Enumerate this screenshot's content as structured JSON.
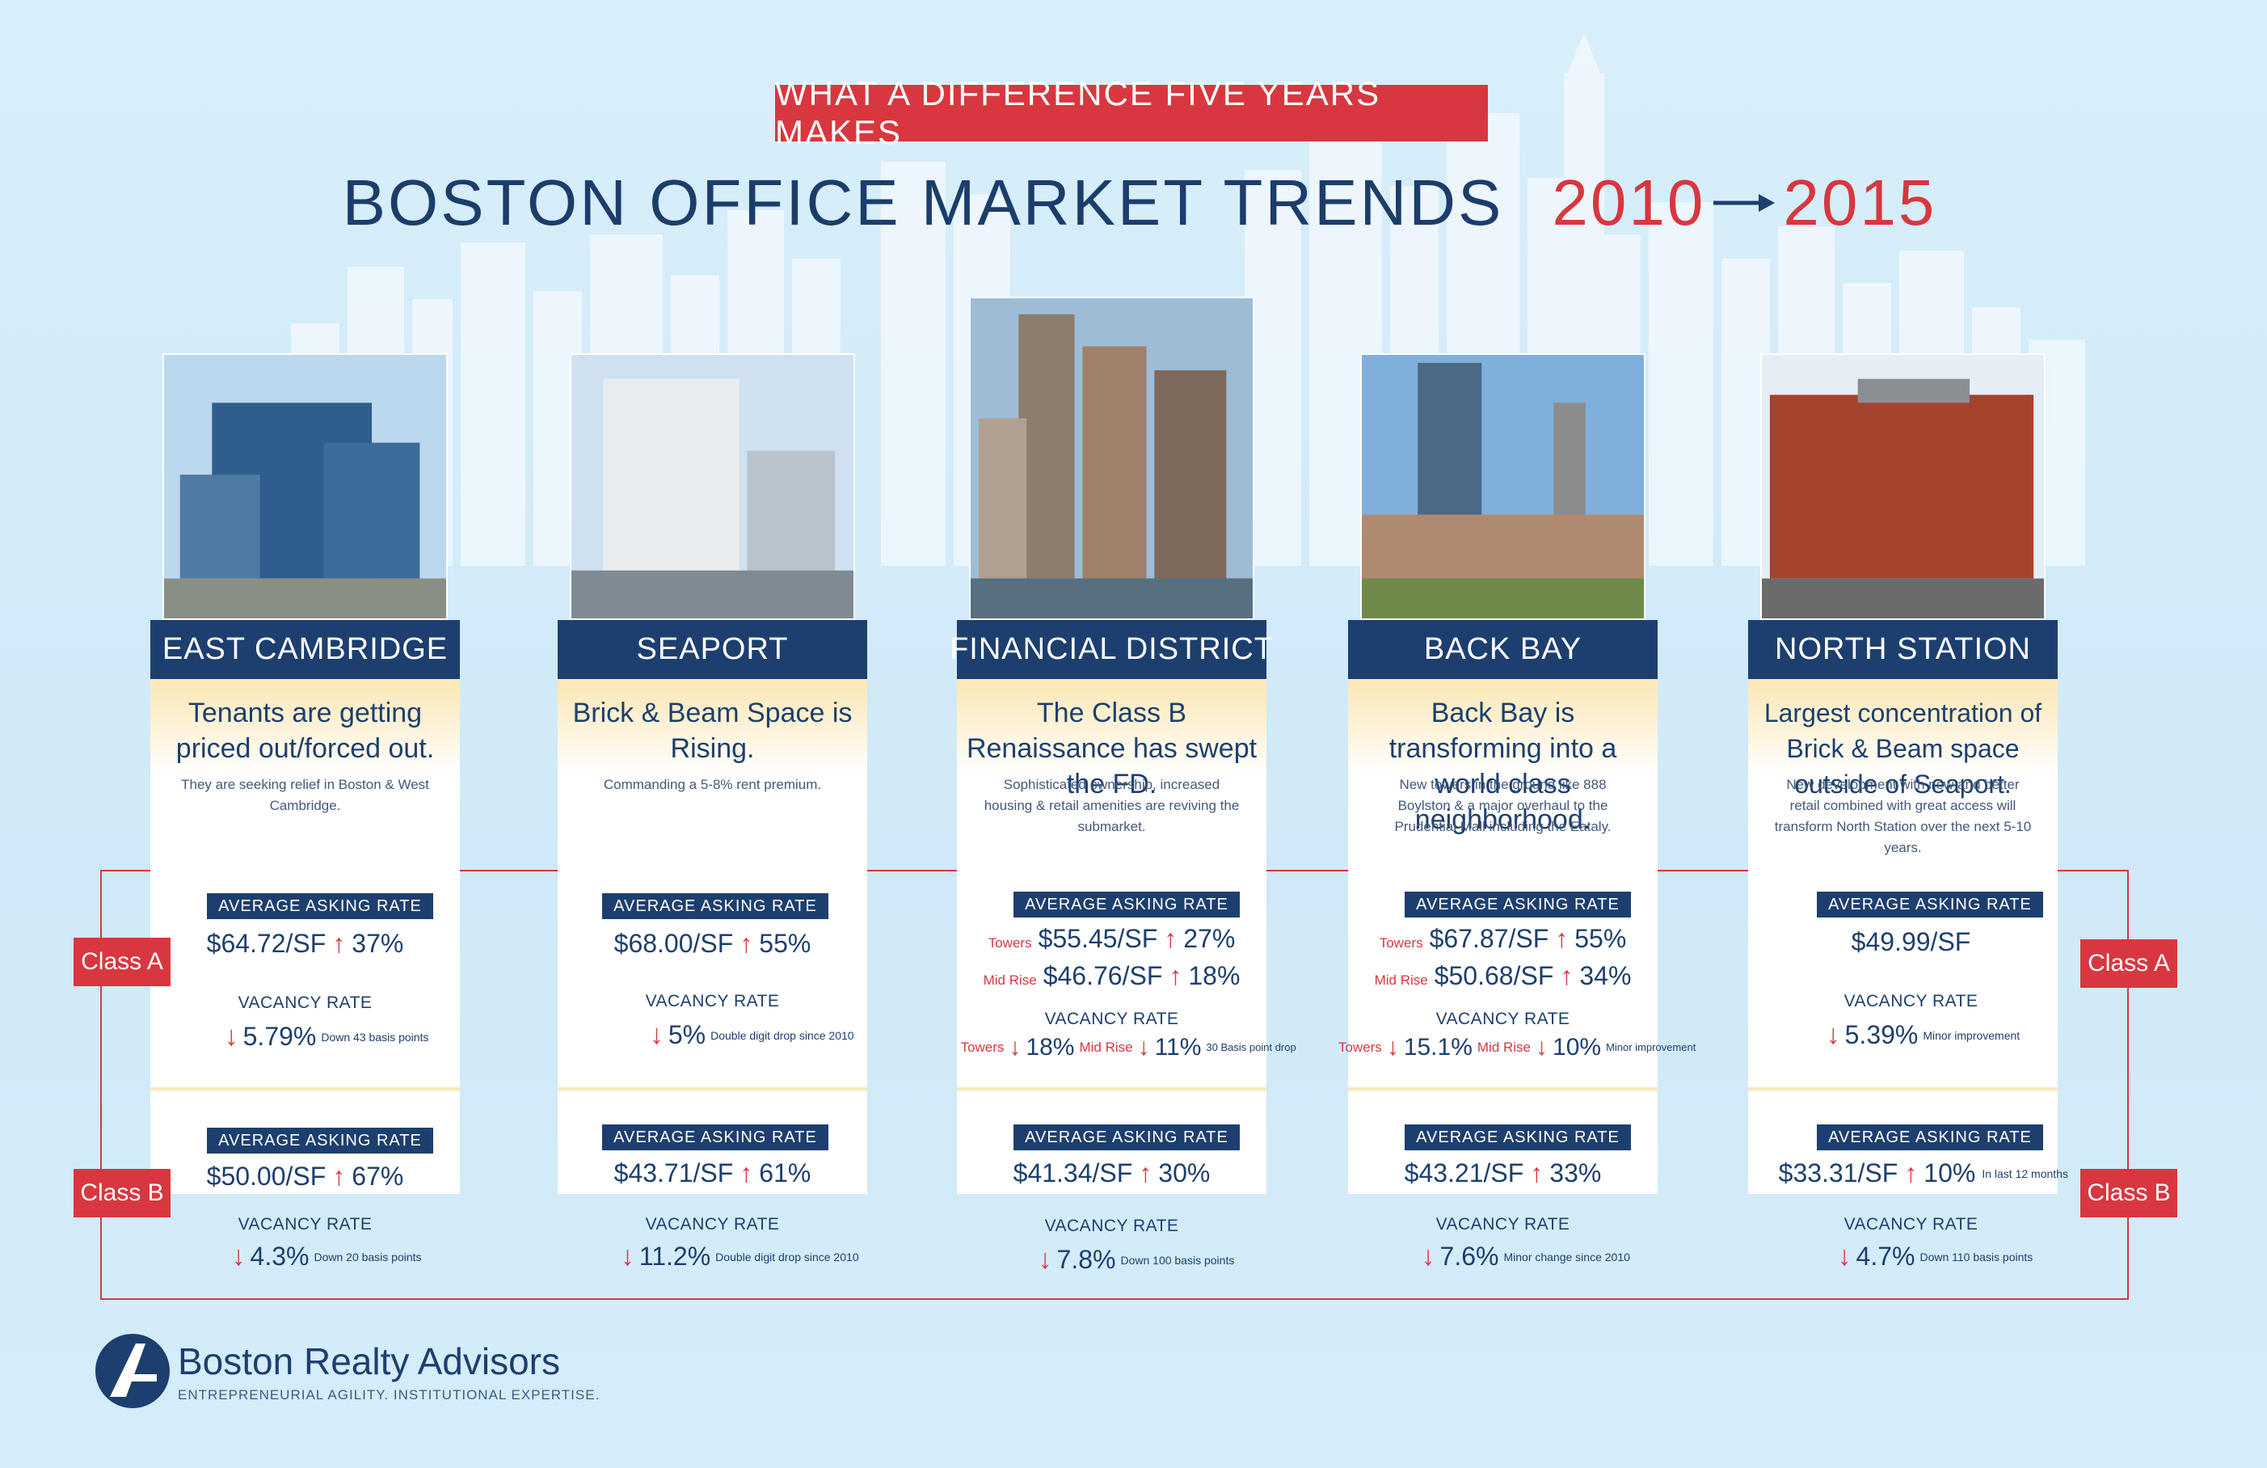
{
  "header": {
    "banner": "WHAT A DIFFERENCE FIVE YEARS MAKES",
    "title": "BOSTON OFFICE MARKET TRENDS",
    "year_start": "2010",
    "year_end": "2015"
  },
  "labels": {
    "asking_rate": "AVERAGE ASKING RATE",
    "vacancy_rate": "VACANCY RATE",
    "class_a": "Class A",
    "class_b": "Class B"
  },
  "colors": {
    "navy": "#1d3f6f",
    "red": "#d8373f",
    "sky": "#d8eefb",
    "cream": "#fbe7b3"
  },
  "icons": {
    "up": "arrow-up-icon",
    "down": "arrow-down-icon"
  },
  "neighborhoods": [
    {
      "name": "EAST CAMBRIDGE",
      "headline": "Tenants are getting priced out/forced out.",
      "subtext": "They are seeking relief in Boston & West Cambridge.",
      "class_a": {
        "rate": "$64.72/SF",
        "change": "37%",
        "vacancy": "5.79%",
        "vacancy_note": "Down 43 basis points"
      },
      "class_b": {
        "rate": "$50.00/SF",
        "change": "67%",
        "vacancy": "4.3%",
        "vacancy_note": "Down 20 basis points"
      }
    },
    {
      "name": "SEAPORT",
      "headline": "Brick & Beam Space is Rising.",
      "subtext": "Commanding a 5-8% rent premium.",
      "class_a": {
        "rate": "$68.00/SF",
        "change": "55%",
        "vacancy": "5%",
        "vacancy_note": "Double digit drop since 2010"
      },
      "class_b": {
        "rate": "$43.71/SF",
        "change": "61%",
        "vacancy": "11.2%",
        "vacancy_note": "Double digit drop since 2010"
      }
    },
    {
      "name": "FINANCIAL DISTRICT",
      "headline": "The Class B Renaissance has swept the FD.",
      "subtext": "Sophisticated ownership, increased housing & retail amenities are reviving the submarket.",
      "class_a": {
        "towers_label": "Towers",
        "midrise_label": "Mid Rise",
        "towers_rate": "$55.45/SF",
        "towers_change": "27%",
        "midrise_rate": "$46.76/SF",
        "midrise_change": "18%",
        "towers_vacancy": "18%",
        "midrise_vacancy": "11%",
        "vacancy_note": "30 Basis point drop"
      },
      "class_b": {
        "rate": "$41.34/SF",
        "change": "30%",
        "vacancy": "7.8%",
        "vacancy_note": "Down 100 basis points"
      }
    },
    {
      "name": "BACK BAY",
      "headline": "Back Bay is transforming into a world class neighborhood.",
      "subtext": "New towers in the ground like 888 Boylston & a major overhaul to the Prudential Mall including the Eataly.",
      "class_a": {
        "towers_label": "Towers",
        "midrise_label": "Mid Rise",
        "towers_rate": "$67.87/SF",
        "towers_change": "55%",
        "midrise_rate": "$50.68/SF",
        "midrise_change": "34%",
        "towers_vacancy": "15.1%",
        "midrise_vacancy": "10%",
        "vacancy_note": "Minor improvement"
      },
      "class_b": {
        "rate": "$43.21/SF",
        "change": "33%",
        "vacancy": "7.6%",
        "vacancy_note": "Minor change since 2010"
      }
    },
    {
      "name": "NORTH STATION",
      "headline": "Largest concentration of Brick & Beam space outside of Seaport.",
      "subtext": "New development with new and better retail combined with great access will transform North Station over the next 5-10 years.",
      "class_a": {
        "rate": "$49.99/SF",
        "vacancy": "5.39%",
        "vacancy_note": "Minor improvement"
      },
      "class_b": {
        "rate": "$33.31/SF",
        "change": "10%",
        "change_note": "In last 12 months",
        "vacancy": "4.7%",
        "vacancy_note": "Down 110 basis points"
      }
    }
  ],
  "footer": {
    "company": "Boston Realty Advisors",
    "tagline": "ENTREPRENEURIAL AGILITY. INSTITUTIONAL EXPERTISE."
  }
}
